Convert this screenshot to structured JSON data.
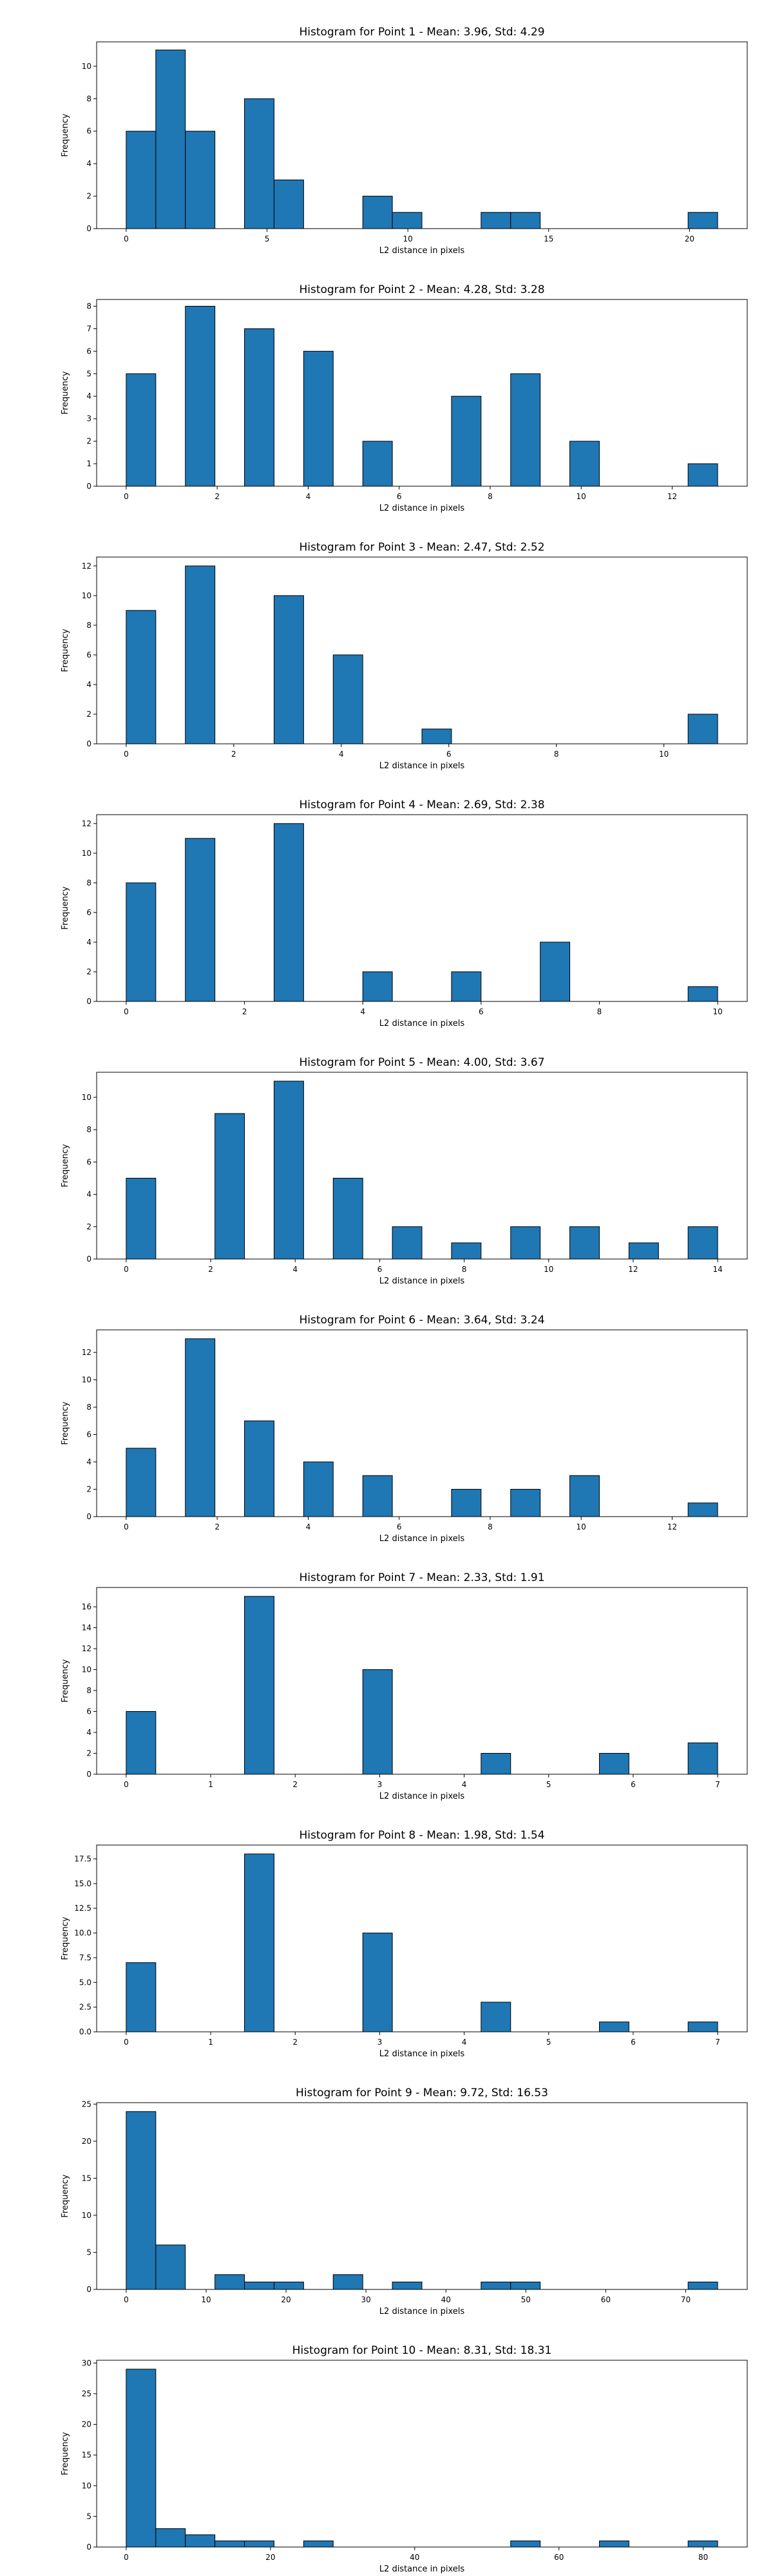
{
  "chart_data": [
    {
      "type": "bar",
      "title": "Histogram for Point 1 - Mean: 3.96, Std: 4.29",
      "xlabel": "L2 distance in pixels",
      "ylabel": "Frequency",
      "xlim": [
        -1.05,
        22.05
      ],
      "ylim": [
        0,
        11.5
      ],
      "xticks": [
        0,
        5,
        10,
        15,
        20
      ],
      "xtick_labels": [
        "0",
        "5",
        "10",
        "15",
        "20"
      ],
      "yticks": [
        0,
        2,
        4,
        6,
        8,
        10
      ],
      "ytick_labels": [
        "0",
        "2",
        "4",
        "6",
        "8",
        "10"
      ],
      "bin_edges": [
        0,
        1.05,
        2.1,
        3.15,
        4.2,
        5.25,
        6.3,
        7.35,
        8.4,
        9.45,
        10.5,
        11.55,
        12.6,
        13.65,
        14.7,
        15.75,
        16.8,
        17.85,
        18.9,
        19.95,
        21.0
      ],
      "values": [
        6,
        11,
        6,
        0,
        8,
        3,
        0,
        0,
        2,
        1,
        0,
        0,
        1,
        1,
        0,
        0,
        0,
        0,
        0,
        1
      ]
    },
    {
      "type": "bar",
      "title": "Histogram for Point 2 - Mean: 4.28, Std: 3.28",
      "xlabel": "L2 distance in pixels",
      "ylabel": "Frequency",
      "xlim": [
        -0.65,
        13.65
      ],
      "ylim": [
        0,
        8.3
      ],
      "xticks": [
        0,
        2,
        4,
        6,
        8,
        10,
        12
      ],
      "xtick_labels": [
        "0",
        "2",
        "4",
        "6",
        "8",
        "10",
        "12"
      ],
      "yticks": [
        0,
        1,
        2,
        3,
        4,
        5,
        6,
        7,
        8
      ],
      "ytick_labels": [
        "0",
        "1",
        "2",
        "3",
        "4",
        "5",
        "6",
        "7",
        "8"
      ],
      "bin_edges": [
        0,
        0.65,
        1.3,
        1.95,
        2.6,
        3.25,
        3.9,
        4.55,
        5.2,
        5.85,
        6.5,
        7.15,
        7.8,
        8.45,
        9.1,
        9.75,
        10.4,
        11.05,
        11.7,
        12.35,
        13.0
      ],
      "values": [
        5,
        0,
        8,
        0,
        7,
        0,
        6,
        0,
        2,
        0,
        0,
        4,
        0,
        5,
        0,
        2,
        0,
        0,
        0,
        1
      ]
    },
    {
      "type": "bar",
      "title": "Histogram for Point 3 - Mean: 2.47, Std: 2.52",
      "xlabel": "L2 distance in pixels",
      "ylabel": "Frequency",
      "xlim": [
        -0.55,
        11.55
      ],
      "ylim": [
        0,
        12.6
      ],
      "xticks": [
        0,
        2,
        4,
        6,
        8,
        10
      ],
      "xtick_labels": [
        "0",
        "2",
        "4",
        "6",
        "8",
        "10"
      ],
      "yticks": [
        0,
        2,
        4,
        6,
        8,
        10,
        12
      ],
      "ytick_labels": [
        "0",
        "2",
        "4",
        "6",
        "8",
        "10",
        "12"
      ],
      "bin_edges": [
        0,
        0.55,
        1.1,
        1.65,
        2.2,
        2.75,
        3.3,
        3.85,
        4.4,
        4.95,
        5.5,
        6.05,
        6.6,
        7.15,
        7.7,
        8.25,
        8.8,
        9.35,
        9.9,
        10.45,
        11.0
      ],
      "values": [
        9,
        0,
        12,
        0,
        0,
        10,
        0,
        6,
        0,
        0,
        1,
        0,
        0,
        0,
        0,
        0,
        0,
        0,
        0,
        2
      ]
    },
    {
      "type": "bar",
      "title": "Histogram for Point 4 - Mean: 2.69, Std: 2.38",
      "xlabel": "L2 distance in pixels",
      "ylabel": "Frequency",
      "xlim": [
        -0.5,
        10.5
      ],
      "ylim": [
        0,
        12.6
      ],
      "xticks": [
        0,
        2,
        4,
        6,
        8,
        10
      ],
      "xtick_labels": [
        "0",
        "2",
        "4",
        "6",
        "8",
        "10"
      ],
      "yticks": [
        0,
        2,
        4,
        6,
        8,
        10,
        12
      ],
      "ytick_labels": [
        "0",
        "2",
        "4",
        "6",
        "8",
        "10",
        "12"
      ],
      "bin_edges": [
        0,
        0.5,
        1.0,
        1.5,
        2.0,
        2.5,
        3.0,
        3.5,
        4.0,
        4.5,
        5.0,
        5.5,
        6.0,
        6.5,
        7.0,
        7.5,
        8.0,
        8.5,
        9.0,
        9.5,
        10.0
      ],
      "values": [
        8,
        0,
        11,
        0,
        0,
        12,
        0,
        0,
        2,
        0,
        0,
        2,
        0,
        0,
        4,
        0,
        0,
        0,
        0,
        1
      ]
    },
    {
      "type": "bar",
      "title": "Histogram for Point 5 - Mean: 4.00, Std: 3.67",
      "xlabel": "L2 distance in pixels",
      "ylabel": "Frequency",
      "xlim": [
        -0.7,
        14.7
      ],
      "ylim": [
        0,
        11.55
      ],
      "xticks": [
        0,
        2,
        4,
        6,
        8,
        10,
        12,
        14
      ],
      "xtick_labels": [
        "0",
        "2",
        "4",
        "6",
        "8",
        "10",
        "12",
        "14"
      ],
      "yticks": [
        0,
        2,
        4,
        6,
        8,
        10
      ],
      "ytick_labels": [
        "0",
        "2",
        "4",
        "6",
        "8",
        "10"
      ],
      "bin_edges": [
        0,
        0.7,
        1.4,
        2.1,
        2.8,
        3.5,
        4.2,
        4.9,
        5.6,
        6.3,
        7.0,
        7.7,
        8.4,
        9.1,
        9.8,
        10.5,
        11.2,
        11.9,
        12.6,
        13.3,
        14.0
      ],
      "values": [
        5,
        0,
        0,
        9,
        0,
        11,
        0,
        5,
        0,
        2,
        0,
        1,
        0,
        2,
        0,
        2,
        0,
        1,
        0,
        2
      ]
    },
    {
      "type": "bar",
      "title": "Histogram for Point 6 - Mean: 3.64, Std: 3.24",
      "xlabel": "L2 distance in pixels",
      "ylabel": "Frequency",
      "xlim": [
        -0.65,
        13.65
      ],
      "ylim": [
        0,
        13.65
      ],
      "xticks": [
        0,
        2,
        4,
        6,
        8,
        10,
        12
      ],
      "xtick_labels": [
        "0",
        "2",
        "4",
        "6",
        "8",
        "10",
        "12"
      ],
      "yticks": [
        0,
        2,
        4,
        6,
        8,
        10,
        12
      ],
      "ytick_labels": [
        "0",
        "2",
        "4",
        "6",
        "8",
        "10",
        "12"
      ],
      "bin_edges": [
        0,
        0.65,
        1.3,
        1.95,
        2.6,
        3.25,
        3.9,
        4.55,
        5.2,
        5.85,
        6.5,
        7.15,
        7.8,
        8.45,
        9.1,
        9.75,
        10.4,
        11.05,
        11.7,
        12.35,
        13.0
      ],
      "values": [
        5,
        0,
        13,
        0,
        7,
        0,
        4,
        0,
        3,
        0,
        0,
        2,
        0,
        2,
        0,
        3,
        0,
        0,
        0,
        1
      ]
    },
    {
      "type": "bar",
      "title": "Histogram for Point 7 - Mean: 2.33, Std: 1.91",
      "xlabel": "L2 distance in pixels",
      "ylabel": "Frequency",
      "xlim": [
        -0.35,
        7.35
      ],
      "ylim": [
        0,
        17.85
      ],
      "xticks": [
        0,
        1,
        2,
        3,
        4,
        5,
        6,
        7
      ],
      "xtick_labels": [
        "0",
        "1",
        "2",
        "3",
        "4",
        "5",
        "6",
        "7"
      ],
      "yticks": [
        0,
        2,
        4,
        6,
        8,
        10,
        12,
        14,
        16
      ],
      "ytick_labels": [
        "0",
        "2",
        "4",
        "6",
        "8",
        "10",
        "12",
        "14",
        "16"
      ],
      "bin_edges": [
        0,
        0.35,
        0.7,
        1.05,
        1.4,
        1.75,
        2.1,
        2.45,
        2.8,
        3.15,
        3.5,
        3.85,
        4.2,
        4.55,
        4.9,
        5.25,
        5.6,
        5.95,
        6.3,
        6.65,
        7.0
      ],
      "values": [
        6,
        0,
        0,
        0,
        17,
        0,
        0,
        0,
        10,
        0,
        0,
        0,
        2,
        0,
        0,
        0,
        2,
        0,
        0,
        3
      ]
    },
    {
      "type": "bar",
      "title": "Histogram for Point 8 - Mean: 1.98, Std: 1.54",
      "xlabel": "L2 distance in pixels",
      "ylabel": "Frequency",
      "xlim": [
        -0.35,
        7.35
      ],
      "ylim": [
        0,
        18.9
      ],
      "xticks": [
        0,
        1,
        2,
        3,
        4,
        5,
        6,
        7
      ],
      "xtick_labels": [
        "0",
        "1",
        "2",
        "3",
        "4",
        "5",
        "6",
        "7"
      ],
      "yticks": [
        0,
        2.5,
        5,
        7.5,
        10,
        12.5,
        15,
        17.5
      ],
      "ytick_labels": [
        "0.0",
        "2.5",
        "5.0",
        "7.5",
        "10.0",
        "12.5",
        "15.0",
        "17.5"
      ],
      "bin_edges": [
        0,
        0.35,
        0.7,
        1.05,
        1.4,
        1.75,
        2.1,
        2.45,
        2.8,
        3.15,
        3.5,
        3.85,
        4.2,
        4.55,
        4.9,
        5.25,
        5.6,
        5.95,
        6.3,
        6.65,
        7.0
      ],
      "values": [
        7,
        0,
        0,
        0,
        18,
        0,
        0,
        0,
        10,
        0,
        0,
        0,
        3,
        0,
        0,
        0,
        1,
        0,
        0,
        1
      ]
    },
    {
      "type": "bar",
      "title": "Histogram for Point 9 - Mean: 9.72, Std: 16.53",
      "xlabel": "L2 distance in pixels",
      "ylabel": "Frequency",
      "xlim": [
        -3.7,
        77.7
      ],
      "ylim": [
        0,
        25.2
      ],
      "xticks": [
        0,
        10,
        20,
        30,
        40,
        50,
        60,
        70
      ],
      "xtick_labels": [
        "0",
        "10",
        "20",
        "30",
        "40",
        "50",
        "60",
        "70"
      ],
      "yticks": [
        0,
        5,
        10,
        15,
        20,
        25
      ],
      "ytick_labels": [
        "0",
        "5",
        "10",
        "15",
        "20",
        "25"
      ],
      "bin_edges": [
        0,
        3.7,
        7.4,
        11.1,
        14.8,
        18.5,
        22.2,
        25.9,
        29.6,
        33.3,
        37.0,
        40.7,
        44.4,
        48.1,
        51.8,
        55.5,
        59.2,
        62.9,
        66.6,
        70.3,
        74.0
      ],
      "values": [
        24,
        6,
        0,
        2,
        1,
        1,
        0,
        2,
        0,
        1,
        0,
        0,
        1,
        1,
        0,
        0,
        0,
        0,
        0,
        1
      ]
    },
    {
      "type": "bar",
      "title": "Histogram for Point 10 - Mean: 8.31, Std: 18.31",
      "xlabel": "L2 distance in pixels",
      "ylabel": "Frequency",
      "xlim": [
        -4.1,
        86.1
      ],
      "ylim": [
        0,
        30.45
      ],
      "xticks": [
        0,
        20,
        40,
        60,
        80
      ],
      "xtick_labels": [
        "0",
        "20",
        "40",
        "60",
        "80"
      ],
      "yticks": [
        0,
        5,
        10,
        15,
        20,
        25,
        30
      ],
      "ytick_labels": [
        "0",
        "5",
        "10",
        "15",
        "20",
        "25",
        "30"
      ],
      "bin_edges": [
        0,
        4.1,
        8.2,
        12.3,
        16.4,
        20.5,
        24.6,
        28.7,
        32.8,
        36.9,
        41.0,
        45.1,
        49.2,
        53.3,
        57.4,
        61.5,
        65.6,
        69.7,
        73.8,
        77.9,
        82.0
      ],
      "values": [
        29,
        3,
        2,
        1,
        1,
        0,
        1,
        0,
        0,
        0,
        0,
        0,
        0,
        1,
        0,
        0,
        1,
        0,
        0,
        1
      ]
    }
  ],
  "colors": {
    "bar_fill": "#1f77b4",
    "bar_edge": "#000000",
    "background": "#ffffff"
  }
}
